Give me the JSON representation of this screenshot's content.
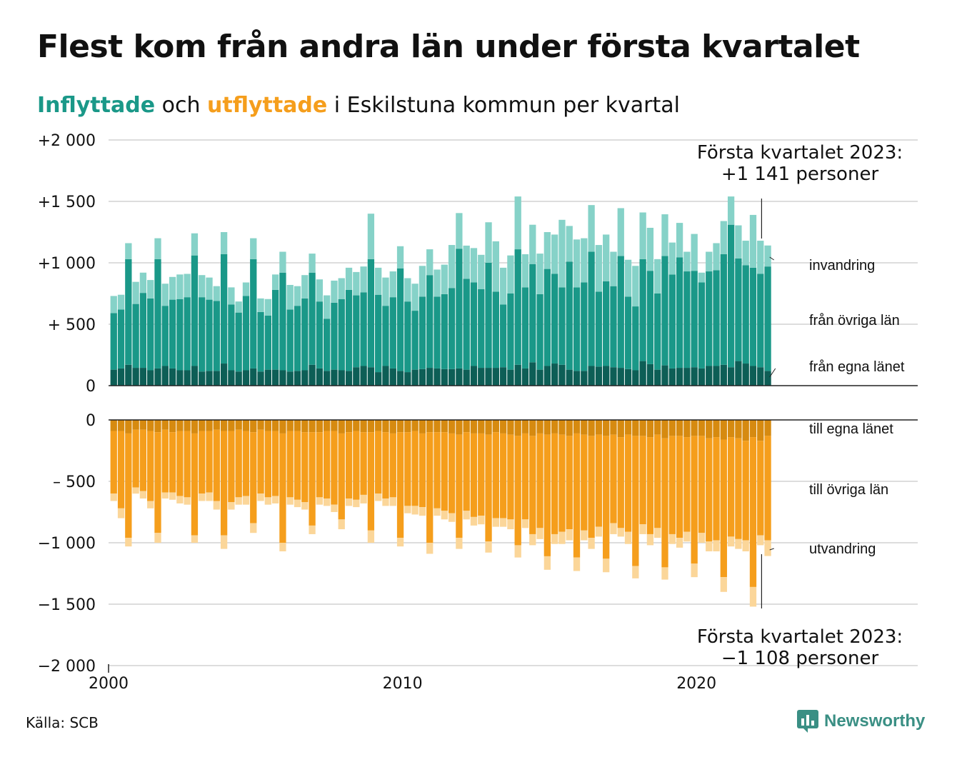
{
  "header": {
    "title": "Flest kom från andra län under första kvartalet",
    "subtitle_in": "Inflyttade",
    "subtitle_mid": " och ",
    "subtitle_out": "utflyttade",
    "subtitle_rest": " i Eskilstuna kommun per kvartal"
  },
  "footer": {
    "source": "Källa: SCB",
    "brand": "Newsworthy"
  },
  "colors": {
    "in_local": "#0d5e56",
    "in_other": "#1a9888",
    "in_abroad": "#86d2c8",
    "out_local": "#d68a10",
    "out_other": "#f59e1c",
    "out_abroad": "#fbd699",
    "grid": "#dddddd",
    "axis": "#222222"
  },
  "chart_data": {
    "type": "bar",
    "stacked": true,
    "start_year": 2000,
    "frequency": "quarterly",
    "x_ticks": [
      "2000",
      "2010",
      "2020"
    ],
    "y_ticks_top": [
      "+2 000",
      "+1 500",
      "+1 000",
      "+  500",
      "0"
    ],
    "y_ticks_bottom": [
      "0",
      "–  500",
      "−1 000",
      "−1 500",
      "−2 000"
    ],
    "ylim_top": [
      0,
      2000
    ],
    "ylim_bottom": [
      -2000,
      0
    ],
    "grid": true,
    "annotation_top": {
      "line1": "Första kvartalet 2023:",
      "line2": "+1 141 personer"
    },
    "annotation_bottom": {
      "line1": "Första kvartalet 2023:",
      "line2": "−1 108 personer"
    },
    "series_top": [
      {
        "name": "från egna länet",
        "values": [
          130,
          140,
          170,
          145,
          145,
          125,
          140,
          160,
          140,
          125,
          125,
          160,
          115,
          120,
          120,
          180,
          125,
          115,
          125,
          140,
          115,
          130,
          130,
          125,
          115,
          120,
          125,
          170,
          140,
          120,
          130,
          125,
          120,
          150,
          160,
          150,
          110,
          160,
          140,
          120,
          110,
          130,
          135,
          145,
          140,
          135,
          135,
          140,
          130,
          160,
          145,
          145,
          145,
          150,
          130,
          170,
          140,
          190,
          130,
          160,
          180,
          170,
          130,
          120,
          120,
          160,
          155,
          160,
          150,
          145,
          135,
          125,
          200,
          175,
          130,
          165,
          140,
          145,
          145,
          150,
          140,
          160,
          160,
          170,
          150,
          200,
          180,
          160,
          150,
          120
        ]
      },
      {
        "name": "från övriga län",
        "values": [
          460,
          480,
          860,
          520,
          610,
          585,
          890,
          490,
          560,
          580,
          595,
          900,
          605,
          580,
          570,
          890,
          535,
          480,
          605,
          890,
          485,
          440,
          650,
          795,
          505,
          530,
          585,
          750,
          545,
          425,
          545,
          580,
          660,
          585,
          600,
          880,
          630,
          490,
          580,
          835,
          575,
          480,
          590,
          755,
          585,
          610,
          660,
          975,
          740,
          680,
          640,
          855,
          620,
          510,
          620,
          940,
          660,
          800,
          615,
          790,
          730,
          630,
          880,
          680,
          720,
          930,
          610,
          690,
          660,
          910,
          590,
          520,
          830,
          760,
          620,
          890,
          765,
          900,
          785,
          785,
          700,
          770,
          780,
          900,
          1160,
          835,
          800,
          800,
          760,
          850
        ]
      },
      {
        "name": "invandring",
        "values": [
          140,
          120,
          130,
          180,
          165,
          150,
          170,
          180,
          185,
          200,
          190,
          180,
          180,
          180,
          120,
          180,
          140,
          90,
          110,
          170,
          110,
          135,
          125,
          170,
          200,
          160,
          190,
          155,
          180,
          190,
          180,
          170,
          180,
          190,
          210,
          370,
          220,
          230,
          210,
          180,
          190,
          220,
          250,
          210,
          220,
          240,
          350,
          290,
          270,
          280,
          280,
          330,
          410,
          300,
          310,
          430,
          270,
          320,
          330,
          300,
          320,
          550,
          290,
          390,
          360,
          380,
          380,
          380,
          280,
          390,
          300,
          330,
          380,
          350,
          280,
          340,
          260,
          280,
          160,
          300,
          80,
          160,
          220,
          270,
          230,
          270,
          200,
          430,
          270,
          171
        ]
      }
    ],
    "series_bottom": [
      {
        "name": "till egna länet",
        "values": [
          -90,
          -90,
          -110,
          -80,
          -80,
          -90,
          -100,
          -80,
          -100,
          -90,
          -90,
          -110,
          -90,
          -90,
          -80,
          -90,
          -90,
          -80,
          -90,
          -100,
          -80,
          -90,
          -90,
          -110,
          -90,
          -90,
          -100,
          -100,
          -100,
          -90,
          -90,
          -110,
          -100,
          -90,
          -100,
          -100,
          -90,
          -100,
          -110,
          -100,
          -100,
          -90,
          -110,
          -100,
          -100,
          -100,
          -110,
          -120,
          -100,
          -110,
          -110,
          -120,
          -100,
          -110,
          -120,
          -130,
          -110,
          -130,
          -110,
          -120,
          -110,
          -120,
          -130,
          -110,
          -120,
          -130,
          -120,
          -130,
          -120,
          -140,
          -120,
          -130,
          -130,
          -140,
          -120,
          -150,
          -130,
          -130,
          -140,
          -130,
          -130,
          -150,
          -140,
          -160,
          -140,
          -150,
          -170,
          -140,
          -170,
          -130
        ]
      },
      {
        "name": "till övriga län",
        "values": [
          -510,
          -630,
          -850,
          -470,
          -500,
          -570,
          -820,
          -510,
          -490,
          -530,
          -540,
          -830,
          -510,
          -500,
          -580,
          -850,
          -580,
          -550,
          -530,
          -740,
          -520,
          -540,
          -530,
          -890,
          -540,
          -560,
          -570,
          -760,
          -530,
          -550,
          -600,
          -700,
          -540,
          -560,
          -510,
          -800,
          -510,
          -540,
          -520,
          -860,
          -600,
          -610,
          -600,
          -900,
          -620,
          -640,
          -650,
          -840,
          -640,
          -680,
          -670,
          -870,
          -700,
          -690,
          -690,
          -890,
          -700,
          -800,
          -770,
          -990,
          -820,
          -790,
          -760,
          -1010,
          -780,
          -830,
          -750,
          -1000,
          -720,
          -740,
          -790,
          -1060,
          -720,
          -790,
          -760,
          -1050,
          -800,
          -830,
          -770,
          -1040,
          -790,
          -840,
          -840,
          -1120,
          -810,
          -820,
          -810,
          -1220,
          -770,
          -850
        ]
      },
      {
        "name": "utvandring",
        "values": [
          -60,
          -80,
          -70,
          -50,
          -60,
          -60,
          -80,
          -50,
          -60,
          -60,
          -60,
          -60,
          -60,
          -70,
          -70,
          -110,
          -60,
          -60,
          -70,
          -80,
          -60,
          -60,
          -60,
          -70,
          -60,
          -60,
          -60,
          -70,
          -60,
          -60,
          -60,
          -80,
          -60,
          -60,
          -70,
          -100,
          -60,
          -60,
          -70,
          -70,
          -60,
          -70,
          -70,
          -90,
          -60,
          -70,
          -70,
          -90,
          -70,
          -70,
          -70,
          -90,
          -70,
          -70,
          -80,
          -100,
          -70,
          -90,
          -90,
          -110,
          -80,
          -100,
          -90,
          -110,
          -80,
          -90,
          -80,
          -110,
          -90,
          -70,
          -100,
          -100,
          -80,
          -90,
          -80,
          -100,
          -80,
          -80,
          -80,
          -110,
          -80,
          -80,
          -90,
          -120,
          -80,
          -80,
          -90,
          -160,
          -80,
          -128
        ]
      }
    ]
  }
}
